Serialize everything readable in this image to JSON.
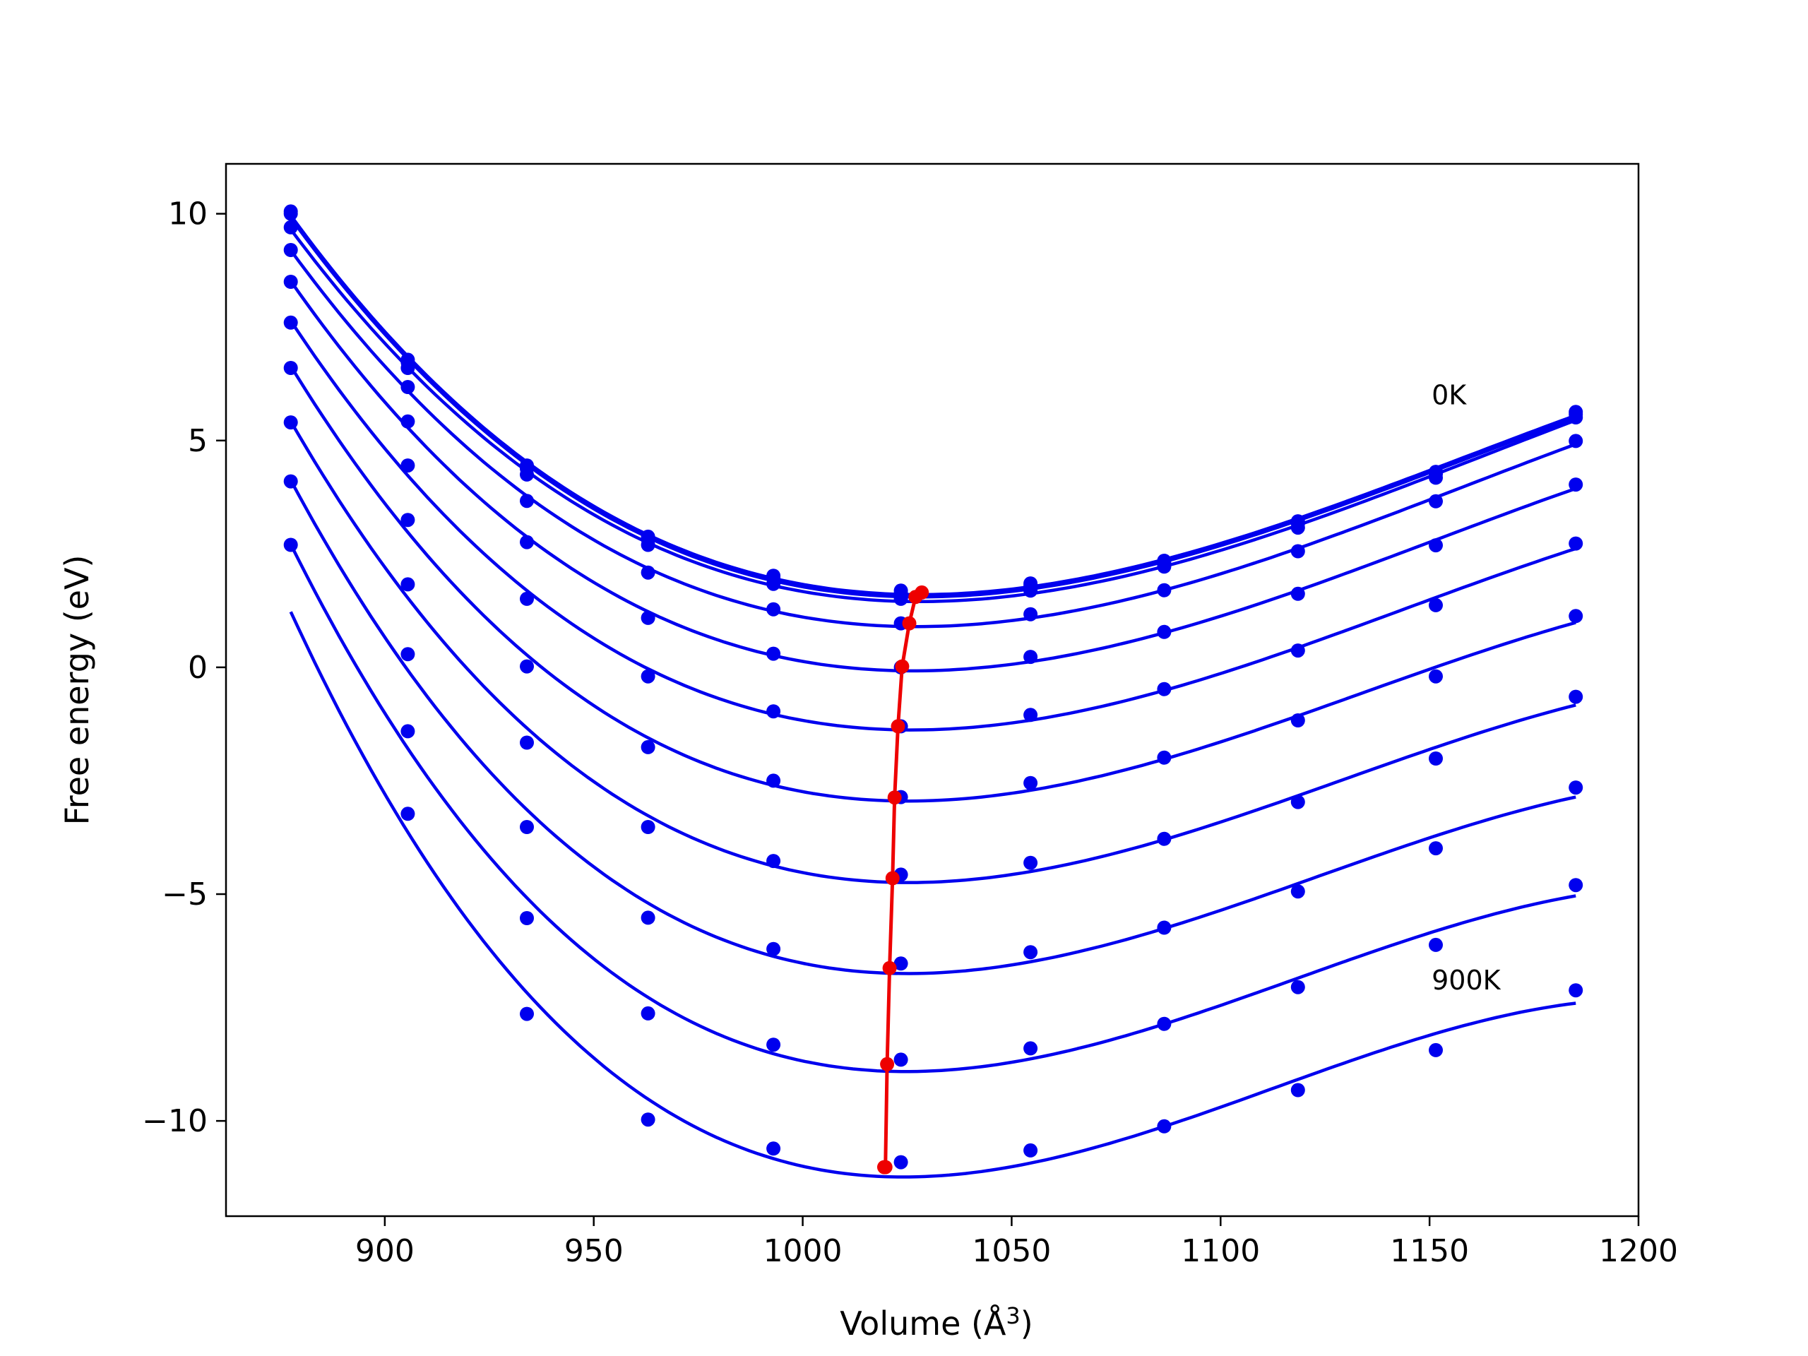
{
  "chart_data": {
    "type": "line",
    "title": "",
    "xlabel": "Volume (Å³)",
    "xlabel_parts": {
      "prefix": "Volume (",
      "unit": "Å",
      "sup": "3",
      "suffix": ")"
    },
    "ylabel": "Free energy (eV)",
    "xlim": [
      862,
      1200
    ],
    "ylim": [
      -12.1,
      11.1
    ],
    "xticks": [
      900,
      950,
      1000,
      1050,
      1100,
      1150,
      1200
    ],
    "yticks": [
      -10,
      -5,
      0,
      5,
      10
    ],
    "ytick_labels": [
      "−10",
      "−5",
      "0",
      "5",
      "10"
    ],
    "grid": false,
    "legend": "none",
    "annotations": [
      {
        "text": "0K",
        "x": 1150.5,
        "y": 5.8
      },
      {
        "text": "900K",
        "x": 1150.5,
        "y": -7.1
      }
    ],
    "colors": {
      "series": "#0000ee",
      "minima": "#ee0000"
    },
    "x_points": [
      877.5,
      905.5,
      934,
      963,
      993,
      1023.5,
      1054.5,
      1086.5,
      1118.5,
      1151.5,
      1185
    ],
    "series": [
      {
        "label": "0K",
        "values": [
          10.05,
          6.78,
          4.45,
          2.88,
          2.02,
          1.69,
          1.85,
          2.35,
          3.22,
          4.31,
          5.63
        ]
      },
      {
        "values": [
          10.0,
          6.72,
          4.38,
          2.82,
          1.98,
          1.64,
          1.8,
          2.3,
          3.17,
          4.26,
          5.58
        ]
      },
      {
        "values": [
          9.7,
          6.6,
          4.25,
          2.7,
          1.84,
          1.51,
          1.69,
          2.22,
          3.08,
          4.18,
          5.51
        ]
      },
      {
        "values": [
          9.2,
          6.18,
          3.67,
          2.09,
          1.28,
          0.97,
          1.17,
          1.7,
          2.56,
          3.66,
          4.99
        ]
      },
      {
        "values": [
          8.5,
          5.42,
          2.76,
          1.09,
          0.3,
          0.0,
          0.23,
          0.78,
          1.62,
          2.69,
          4.03
        ]
      },
      {
        "values": [
          7.6,
          4.45,
          1.51,
          -0.2,
          -0.97,
          -1.3,
          -1.05,
          -0.48,
          0.37,
          1.37,
          2.73
        ]
      },
      {
        "values": [
          6.6,
          3.25,
          0.02,
          -1.76,
          -2.5,
          -2.86,
          -2.55,
          -1.99,
          -1.17,
          -0.2,
          1.13
        ]
      },
      {
        "values": [
          5.4,
          1.83,
          -1.66,
          -3.52,
          -4.27,
          -4.57,
          -4.31,
          -3.78,
          -2.97,
          -2.01,
          -0.65
        ]
      },
      {
        "values": [
          4.1,
          0.29,
          -3.52,
          -5.52,
          -6.21,
          -6.53,
          -6.28,
          -5.74,
          -4.94,
          -3.99,
          -2.65
        ]
      },
      {
        "values": [
          2.7,
          -1.41,
          -5.53,
          -7.63,
          -8.32,
          -8.65,
          -8.4,
          -7.86,
          -7.05,
          -6.12,
          -4.8
        ]
      },
      {
        "label": "900K",
        "values": [
          null,
          -3.23,
          -7.64,
          -9.97,
          -10.61,
          -10.91,
          -10.65,
          -10.12,
          -9.32,
          -8.44,
          -7.12
        ]
      }
    ],
    "minima_curve": {
      "x": [
        1028.5,
        1027,
        1025.5,
        1023.8,
        1022.8,
        1022.0,
        1021.5,
        1020.8,
        1020.2,
        1019.8,
        1019.5
      ],
      "y": [
        1.65,
        1.55,
        0.97,
        0.02,
        -1.3,
        -2.87,
        -4.65,
        -6.63,
        -8.75,
        -11.02,
        -11.02
      ]
    }
  }
}
